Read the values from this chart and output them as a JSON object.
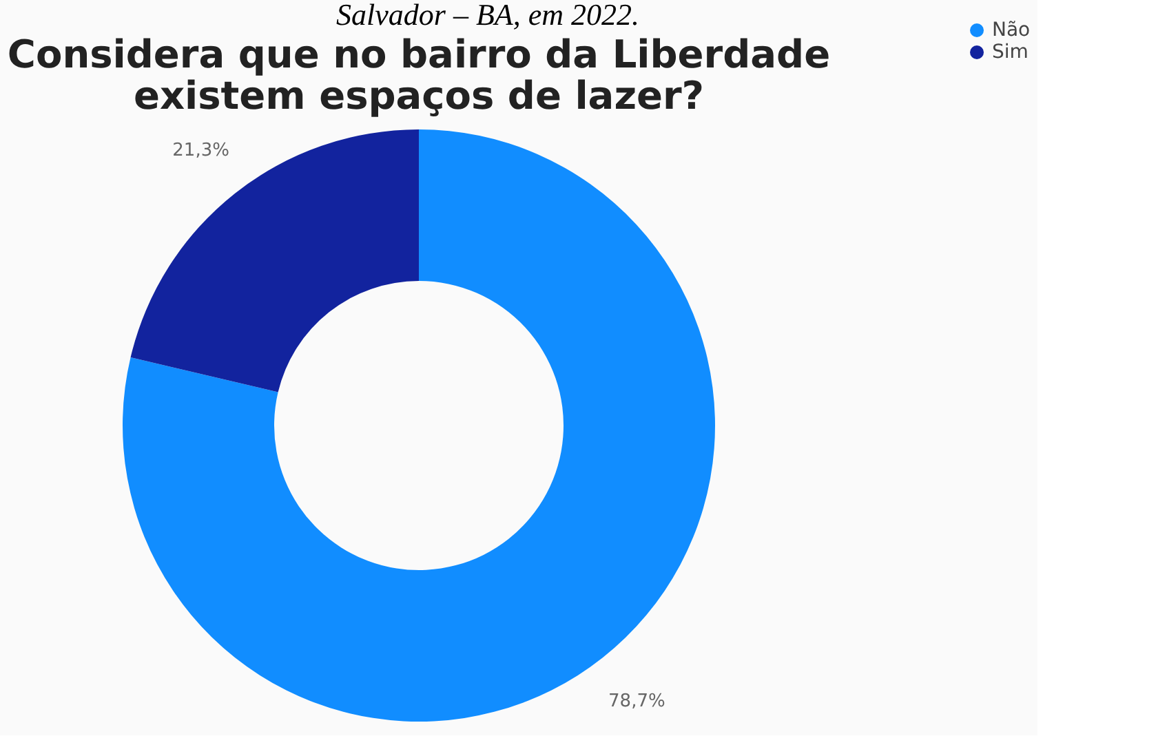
{
  "chart_data": {
    "type": "donut",
    "title": [
      "Considera que no bairro da Liberdade",
      "existem espaços de lazer?"
    ],
    "annotations": [
      "Salvador – BA, em 2022."
    ],
    "categories": [
      "Não",
      "Sim"
    ],
    "values": [
      78.7,
      21.3
    ],
    "colors": [
      "#118dff",
      "#12239e"
    ],
    "value_labels": [
      "78,7%",
      "21,3%"
    ],
    "legend": "right"
  }
}
